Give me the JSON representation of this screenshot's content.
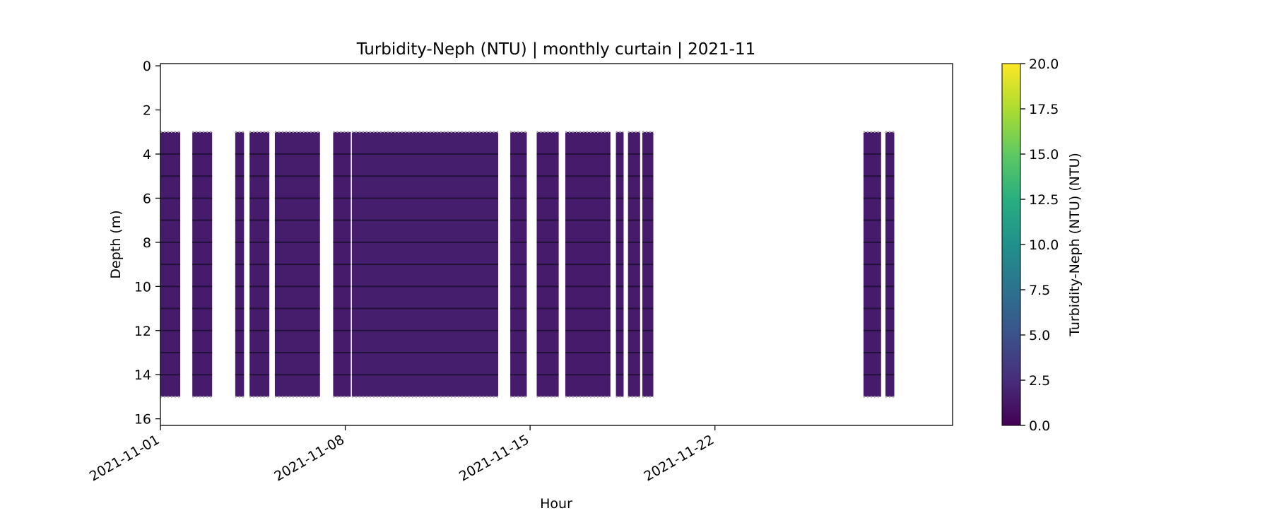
{
  "chart_data": {
    "type": "heatmap",
    "title": "Turbidity-Neph (NTU) | monthly curtain | 2021-11",
    "xlabel": "Hour",
    "ylabel": "Depth (m)",
    "x_range": [
      "2021-11-01",
      "2021-12-01"
    ],
    "y_range": [
      16.3,
      -0.1
    ],
    "y_inverted": true,
    "x_ticks": [
      "2021-11-01",
      "2021-11-08",
      "2021-11-15",
      "2021-11-22"
    ],
    "y_ticks": [
      "0",
      "2",
      "4",
      "6",
      "8",
      "10",
      "12",
      "14",
      "16"
    ],
    "grid": false,
    "colormap": "viridis",
    "colorbar": {
      "label": "Turbidity-Neph (NTU) (NTU)",
      "min": 0.0,
      "max": 20.0,
      "ticks": [
        "0.0",
        "2.5",
        "5.0",
        "7.5",
        "10.0",
        "12.5",
        "15.0",
        "17.5",
        "20.0"
      ],
      "position": "right"
    },
    "profile_depths_m": [
      3,
      4,
      5,
      6,
      7,
      8,
      9,
      10,
      11,
      12,
      13,
      14,
      15
    ],
    "typical_value_ntu": 1.5,
    "data_blocks": [
      {
        "start": "2021-11-01T00:00",
        "end": "2021-11-01T18:00",
        "top_m": 3.0,
        "bottom_m": 15.0,
        "value": 1.5
      },
      {
        "start": "2021-11-02T05:00",
        "end": "2021-11-02T23:00",
        "top_m": 3.0,
        "bottom_m": 15.0,
        "value": 1.5
      },
      {
        "start": "2021-11-03T20:00",
        "end": "2021-11-04T04:00",
        "top_m": 3.0,
        "bottom_m": 15.0,
        "value": 1.5
      },
      {
        "start": "2021-11-04T09:00",
        "end": "2021-11-05T03:00",
        "top_m": 3.0,
        "bottom_m": 15.0,
        "value": 1.5
      },
      {
        "start": "2021-11-05T08:00",
        "end": "2021-11-07T01:00",
        "top_m": 3.0,
        "bottom_m": 15.0,
        "value": 1.6
      },
      {
        "start": "2021-11-07T13:00",
        "end": "2021-11-08T05:00",
        "top_m": 3.0,
        "bottom_m": 15.0,
        "value": 1.5
      },
      {
        "start": "2021-11-08T06:00",
        "end": "2021-11-13T19:00",
        "top_m": 3.0,
        "bottom_m": 15.0,
        "value": 1.7
      },
      {
        "start": "2021-11-14T06:00",
        "end": "2021-11-14T21:00",
        "top_m": 3.0,
        "bottom_m": 15.0,
        "value": 1.5
      },
      {
        "start": "2021-11-15T06:00",
        "end": "2021-11-16T02:00",
        "top_m": 3.0,
        "bottom_m": 15.0,
        "value": 1.5
      },
      {
        "start": "2021-11-16T08:00",
        "end": "2021-11-18T01:00",
        "top_m": 3.0,
        "bottom_m": 15.0,
        "value": 1.5
      },
      {
        "start": "2021-11-18T06:00",
        "end": "2021-11-18T13:00",
        "top_m": 3.0,
        "bottom_m": 15.0,
        "value": 1.5
      },
      {
        "start": "2021-11-18T17:00",
        "end": "2021-11-19T04:00",
        "top_m": 3.0,
        "bottom_m": 15.0,
        "value": 1.5
      },
      {
        "start": "2021-11-19T06:00",
        "end": "2021-11-19T16:00",
        "top_m": 3.0,
        "bottom_m": 15.0,
        "value": 1.5
      },
      {
        "start": "2021-11-27T15:00",
        "end": "2021-11-28T07:00",
        "top_m": 3.0,
        "bottom_m": 15.0,
        "value": 1.5
      },
      {
        "start": "2021-11-28T11:00",
        "end": "2021-11-28T19:00",
        "top_m": 3.0,
        "bottom_m": 15.0,
        "value": 1.5
      }
    ]
  }
}
